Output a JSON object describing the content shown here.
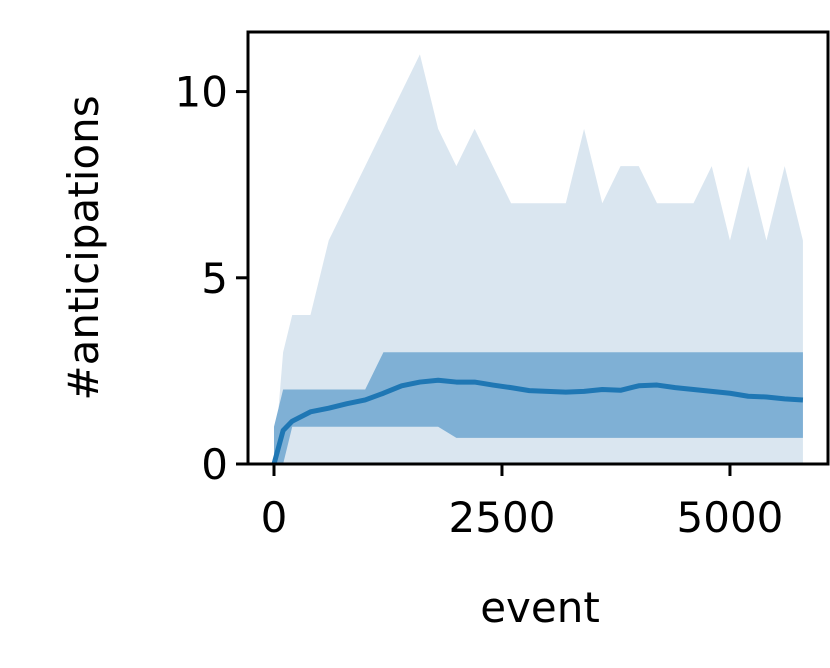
{
  "chart_data": {
    "type": "line",
    "xlabel": "event",
    "ylabel": "#anticipations",
    "x": [
      0,
      100,
      200,
      400,
      600,
      800,
      1000,
      1200,
      1400,
      1600,
      1800,
      2000,
      2200,
      2400,
      2600,
      2800,
      3000,
      3200,
      3400,
      3600,
      3800,
      4000,
      4200,
      4400,
      4600,
      4800,
      5000,
      5200,
      5400,
      5600,
      5800
    ],
    "series": [
      {
        "color": "#1f77b4",
        "values": [
          0,
          0.9,
          1.15,
          1.4,
          1.5,
          1.62,
          1.72,
          1.9,
          2.1,
          2.2,
          2.25,
          2.2,
          2.2,
          2.12,
          2.05,
          1.97,
          1.95,
          1.93,
          1.95,
          2.0,
          1.98,
          2.1,
          2.12,
          2.05,
          2.0,
          1.95,
          1.9,
          1.82,
          1.8,
          1.75,
          1.72
        ]
      }
    ],
    "bands": [
      {
        "color": "#dae6f0",
        "lower": [
          0,
          0,
          0,
          0,
          0,
          0,
          0,
          0,
          0,
          0,
          0,
          0,
          0,
          0,
          0,
          0,
          0,
          0,
          0,
          0,
          0,
          0,
          0,
          0,
          0,
          0,
          0,
          0,
          0,
          0,
          0
        ],
        "upper": [
          0,
          3,
          4,
          4,
          6,
          7,
          8,
          9,
          10,
          11,
          9,
          8,
          9,
          8,
          7,
          7,
          7,
          7,
          9,
          7,
          8,
          8,
          7,
          7,
          7,
          8,
          6,
          8,
          6,
          8,
          6
        ]
      },
      {
        "color": "#7fb0d5",
        "lower": [
          0,
          0,
          1,
          1,
          1,
          1,
          1,
          1,
          1,
          1,
          1,
          0.7,
          0.7,
          0.7,
          0.7,
          0.7,
          0.7,
          0.7,
          0.7,
          0.7,
          0.7,
          0.7,
          0.7,
          0.7,
          0.7,
          0.7,
          0.7,
          0.7,
          0.7,
          0.7,
          0.7
        ],
        "upper": [
          1,
          2,
          2,
          2,
          2,
          2,
          2,
          3,
          3,
          3,
          3,
          3,
          3,
          3,
          3,
          3,
          3,
          3,
          3,
          3,
          3,
          3,
          3,
          3,
          3,
          3,
          3,
          3,
          3,
          3,
          3
        ]
      }
    ],
    "xlim": [
      -285,
      6075
    ],
    "ylim": [
      0,
      11.6
    ],
    "xticks": [
      0,
      2500,
      5000
    ],
    "yticks": [
      0,
      5,
      10
    ]
  }
}
